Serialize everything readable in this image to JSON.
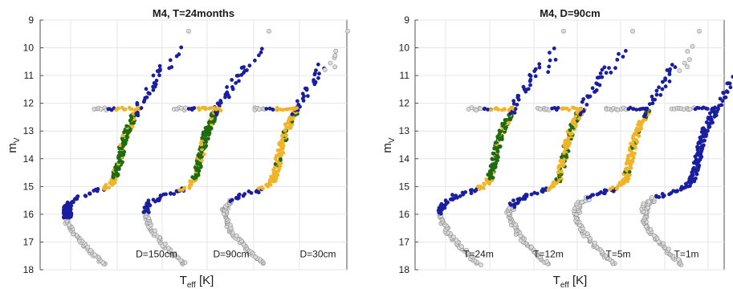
{
  "colors": {
    "excluded": "#dcdcdc",
    "excluded_edge": "#8a8a8a",
    "blue": "#1a1f9e",
    "orange": "#f0b429",
    "green": "#1e6b12"
  },
  "chart_data": [
    {
      "type": "scatter",
      "title": "M4, T=24months",
      "xlabel": "T",
      "xlabel_sub": "eff",
      "xlabel_unit": " [K]",
      "ylabel": "m",
      "ylabel_sub": "V",
      "ylim": [
        18,
        9
      ],
      "y_inverted": true,
      "yticks": [
        9,
        10,
        11,
        12,
        13,
        14,
        15,
        16,
        17,
        18
      ],
      "grid": true,
      "sequences": [
        {
          "annotation": "D=150cm",
          "ms_upper_color": "green",
          "top_class": "green_small"
        },
        {
          "annotation": "D=90cm",
          "ms_upper_color": "green",
          "top_class": "green_small"
        },
        {
          "annotation": "D=30cm",
          "ms_upper_color": "orange",
          "top_class": "excluded"
        }
      ]
    },
    {
      "type": "scatter",
      "title": "M4, D=90cm",
      "xlabel": "T",
      "xlabel_sub": "eff",
      "xlabel_unit": " [K]",
      "ylabel": "m",
      "ylabel_sub": "V",
      "ylim": [
        18,
        9
      ],
      "y_inverted": true,
      "yticks": [
        9,
        10,
        11,
        12,
        13,
        14,
        15,
        16,
        17,
        18
      ],
      "grid": true,
      "sequences": [
        {
          "annotation": "T=24m",
          "ms_upper_color": "green",
          "top_class": "green_small"
        },
        {
          "annotation": "T=12m",
          "ms_upper_color": "orange_green",
          "top_class": "green_small"
        },
        {
          "annotation": "T=5m",
          "ms_upper_color": "orange",
          "top_class": "excluded"
        },
        {
          "annotation": "T=1m",
          "ms_upper_color": "blue",
          "top_class": "excluded"
        }
      ]
    }
  ]
}
